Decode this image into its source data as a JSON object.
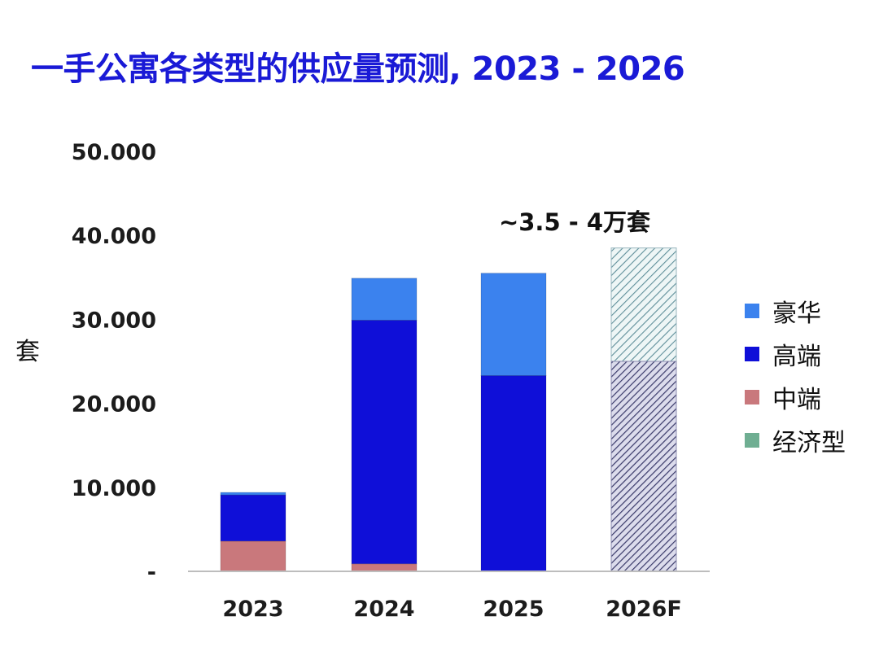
{
  "title": "一手公寓各类型的供应量预测, 2023 - 2026",
  "colors": {
    "luxury": "#3b82ee",
    "high_end": "#0f0fd8",
    "mid_end": "#c9787c",
    "economy": "#6fae92",
    "forecast_hatch": "#3a3a6a",
    "axis": "#bdbdbd",
    "title": "#1a1ad6"
  },
  "chart_data": {
    "type": "bar",
    "stacked": true,
    "title": "一手公寓各类型的供应量预测, 2023 - 2026",
    "ylabel": "套",
    "xlabel": "",
    "categories": [
      "2023",
      "2024",
      "2025",
      "2026F"
    ],
    "ylim": [
      0,
      50000
    ],
    "yticks": [
      0,
      10000,
      20000,
      30000,
      40000,
      50000
    ],
    "ytick_labels": [
      "-",
      "10.000",
      "20.000",
      "30.000",
      "40.000",
      "50.000"
    ],
    "grid": false,
    "legend_position": "right",
    "series": [
      {
        "name": "中端",
        "key": "mid_end",
        "values": [
          3600,
          900,
          0,
          0
        ]
      },
      {
        "name": "高端",
        "key": "high_end",
        "values": [
          5500,
          29000,
          23300,
          0
        ]
      },
      {
        "name": "豪华",
        "key": "luxury",
        "values": [
          300,
          5000,
          12200,
          0
        ]
      },
      {
        "name": "经济型",
        "key": "economy",
        "values": [
          0,
          0,
          0,
          0
        ]
      }
    ],
    "forecast": {
      "category": "2026F",
      "lower": 25000,
      "total": 38500,
      "annotation": "~3.5 - 4万套"
    },
    "legend": [
      {
        "name": "豪华",
        "key": "luxury"
      },
      {
        "name": "高端",
        "key": "high_end"
      },
      {
        "name": "中端",
        "key": "mid_end"
      },
      {
        "name": "经济型",
        "key": "economy"
      }
    ]
  }
}
